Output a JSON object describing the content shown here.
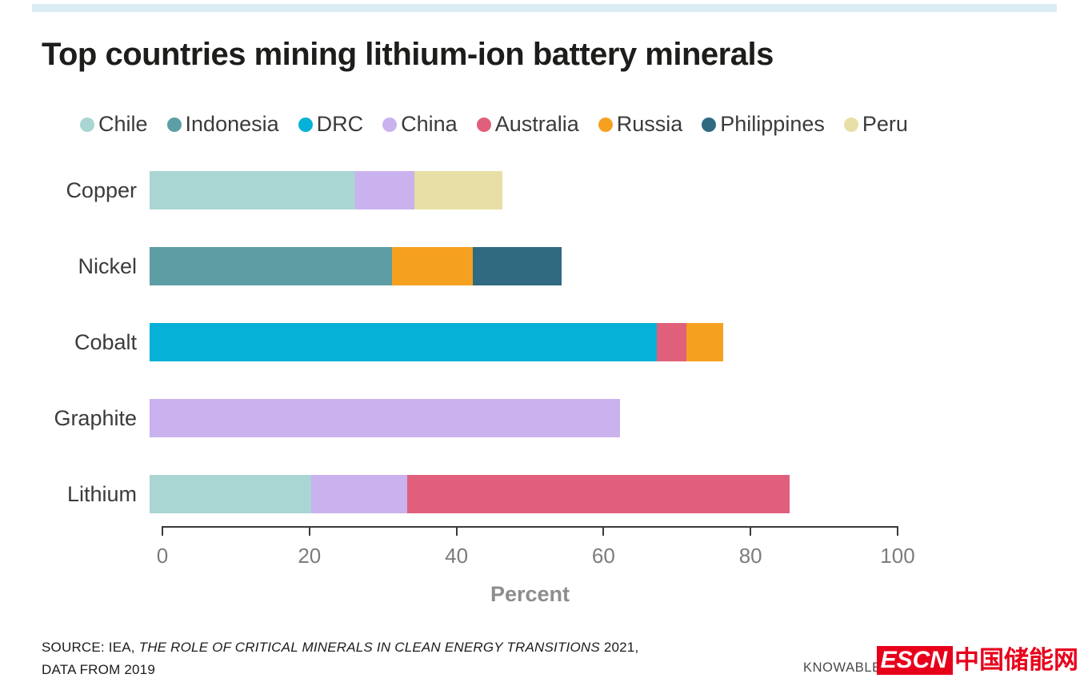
{
  "title": "Top countries mining lithium-ion battery minerals",
  "legend": [
    {
      "label": "Chile",
      "color": "#a9d5d3"
    },
    {
      "label": "Indonesia",
      "color": "#5d9ea4"
    },
    {
      "label": "DRC",
      "color": "#06b1d8"
    },
    {
      "label": "China",
      "color": "#c9b2ee"
    },
    {
      "label": "Australia",
      "color": "#e0607b"
    },
    {
      "label": "Russia",
      "color": "#f6a01f"
    },
    {
      "label": "Philippines",
      "color": "#2f6a81"
    },
    {
      "label": "Peru",
      "color": "#e7dfa5"
    }
  ],
  "chart_data": {
    "type": "bar",
    "orientation": "horizontal",
    "stacked": true,
    "title": "Top countries mining lithium-ion battery minerals",
    "categories": [
      "Copper",
      "Nickel",
      "Cobalt",
      "Graphite",
      "Lithium"
    ],
    "xlabel": "Percent",
    "xlim": [
      0,
      100
    ],
    "xticks": [
      0,
      20,
      40,
      60,
      80,
      100
    ],
    "grid": false,
    "legend_position": "top",
    "bars": [
      {
        "category": "Copper",
        "segments": [
          {
            "country": "Chile",
            "value": 28
          },
          {
            "country": "China",
            "value": 8
          },
          {
            "country": "Peru",
            "value": 12
          }
        ]
      },
      {
        "category": "Nickel",
        "segments": [
          {
            "country": "Indonesia",
            "value": 33
          },
          {
            "country": "Russia",
            "value": 11
          },
          {
            "country": "Philippines",
            "value": 12
          }
        ]
      },
      {
        "category": "Cobalt",
        "segments": [
          {
            "country": "DRC",
            "value": 69
          },
          {
            "country": "Australia",
            "value": 4
          },
          {
            "country": "Russia",
            "value": 5
          }
        ]
      },
      {
        "category": "Graphite",
        "segments": [
          {
            "country": "China",
            "value": 64
          }
        ]
      },
      {
        "category": "Lithium",
        "segments": [
          {
            "country": "Chile",
            "value": 22
          },
          {
            "country": "China",
            "value": 13
          },
          {
            "country": "Australia",
            "value": 52
          }
        ]
      }
    ]
  },
  "footer": {
    "source_prefix": "SOURCE: IEA, ",
    "source_italic": "THE ROLE OF CRITICAL MINERALS IN CLEAN ENERGY TRANSITIONS",
    "source_suffix": " 2021,",
    "source_line2": "DATA FROM 2019",
    "credit": "KNOWABLE MAGAZINE",
    "logo_text": "ESCN",
    "logo_cn": "中国储能网",
    "logo_color": "#e8001b"
  },
  "colors": {
    "top_strip": "#d9ecf3",
    "axis": "#3a3a3a",
    "tick_label": "#7c7c7c",
    "title_text": "#1d1d1b"
  }
}
